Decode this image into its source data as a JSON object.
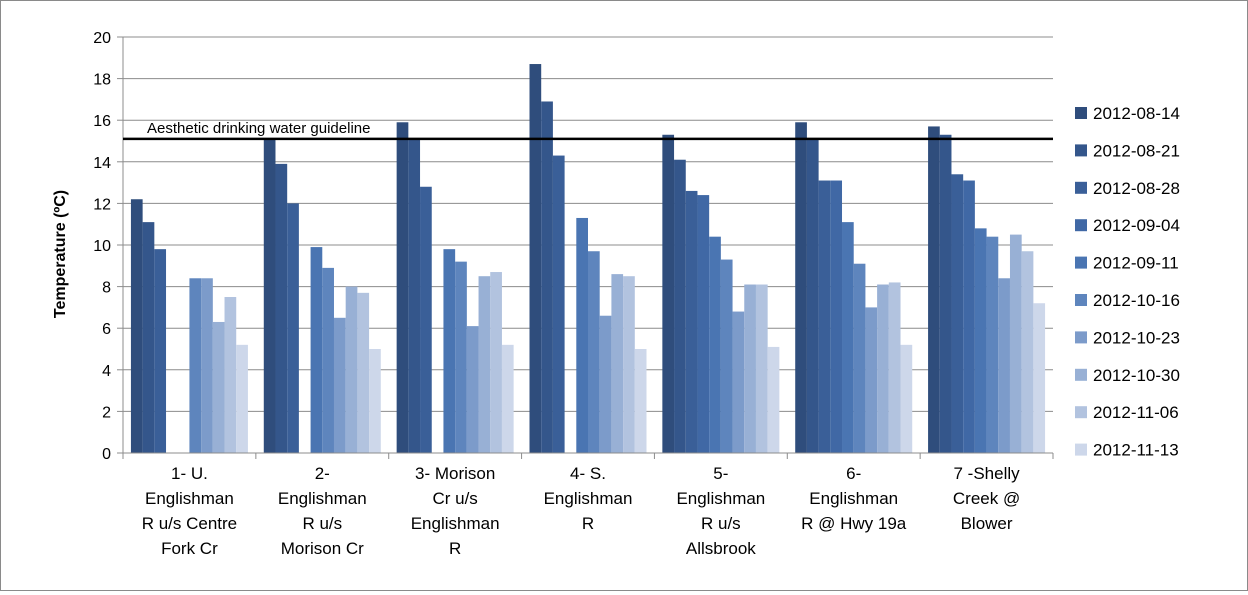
{
  "chart_data": {
    "type": "bar",
    "title": "",
    "xlabel": "",
    "ylabel": "Temperature (ºC)",
    "ylim": [
      0,
      20
    ],
    "yticks": [
      0,
      2,
      4,
      6,
      8,
      10,
      12,
      14,
      16,
      18,
      20
    ],
    "ytick_labels": [
      "0",
      "2",
      "4",
      "6",
      "8",
      "10",
      "12",
      "14",
      "16",
      "18",
      "20"
    ],
    "grid": "horizontal",
    "legend_position": "right",
    "categories": [
      [
        "1- U.",
        "Englishman",
        "R u/s Centre",
        "Fork Cr"
      ],
      [
        "2-",
        "Englishman",
        "R u/s",
        "Morison Cr"
      ],
      [
        "3- Morison",
        "Cr u/s",
        "Englishman",
        "R"
      ],
      [
        "4- S.",
        "Englishman",
        "R"
      ],
      [
        "5-",
        "Englishman",
        "R u/s",
        "Allsbrook"
      ],
      [
        "6-",
        "Englishman",
        "R @ Hwy 19a"
      ],
      [
        "7 -Shelly",
        "Creek @",
        "Blower"
      ]
    ],
    "series": [
      {
        "name": "2012-08-14",
        "color": "#2f4d7c",
        "values": [
          12.2,
          15.1,
          15.9,
          18.7,
          15.3,
          15.9,
          15.7
        ]
      },
      {
        "name": "2012-08-21",
        "color": "#34568b",
        "values": [
          11.1,
          13.9,
          15.1,
          16.9,
          14.1,
          15.1,
          15.3
        ]
      },
      {
        "name": "2012-08-28",
        "color": "#3a5f98",
        "values": [
          9.8,
          12.0,
          12.8,
          14.3,
          12.6,
          13.1,
          13.4
        ]
      },
      {
        "name": "2012-09-04",
        "color": "#4068a5",
        "values": [
          null,
          null,
          null,
          null,
          12.4,
          13.1,
          13.1
        ]
      },
      {
        "name": "2012-09-11",
        "color": "#4a75b2",
        "values": [
          null,
          9.9,
          9.8,
          11.3,
          10.4,
          11.1,
          10.8
        ]
      },
      {
        "name": "2012-10-16",
        "color": "#5e85bd",
        "values": [
          8.4,
          8.9,
          9.2,
          9.7,
          9.3,
          9.1,
          10.4
        ]
      },
      {
        "name": "2012-10-23",
        "color": "#7c9bca",
        "values": [
          8.4,
          6.5,
          6.1,
          6.6,
          6.8,
          7.0,
          8.4
        ]
      },
      {
        "name": "2012-10-30",
        "color": "#98b0d5",
        "values": [
          6.3,
          8.0,
          8.5,
          8.6,
          8.1,
          8.1,
          10.5
        ]
      },
      {
        "name": "2012-11-06",
        "color": "#b2c3df",
        "values": [
          7.5,
          7.7,
          8.7,
          8.5,
          8.1,
          8.2,
          9.7
        ]
      },
      {
        "name": "2012-11-13",
        "color": "#cdd7ea",
        "values": [
          5.2,
          5.0,
          5.2,
          5.0,
          5.1,
          5.2,
          7.2
        ]
      }
    ],
    "annotations": [
      {
        "text": "Aesthetic drinking water guideline",
        "y": 15.1
      }
    ]
  }
}
